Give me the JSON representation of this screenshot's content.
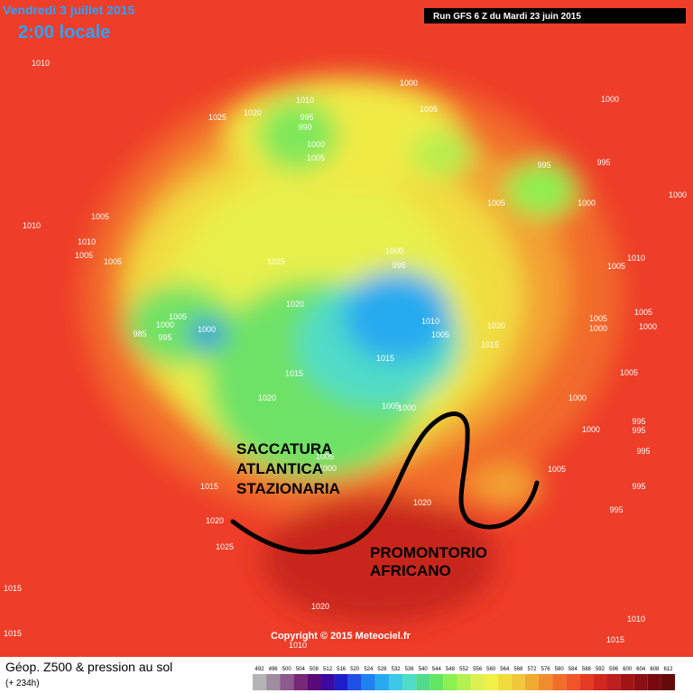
{
  "header": {
    "date": "Vendredi 3 juillet 2015",
    "time": "2:00 locale",
    "run": "Run GFS 6 Z du Mardi 23 juin 2015"
  },
  "annotations": {
    "trough": [
      "SACCATURA",
      "ATLANTICA",
      "STAZIONARIA"
    ],
    "ridge": [
      "PROMONTORIO",
      "AFRICANO"
    ]
  },
  "isobar_labels": [
    1010,
    1025,
    1020,
    1010,
    995,
    990,
    1000,
    1005,
    1000,
    1005,
    1000,
    995,
    995,
    1005,
    1000,
    1000,
    1005,
    1010,
    1010,
    1005,
    1005,
    1025,
    1000,
    995,
    1010,
    1005,
    1020,
    1005,
    1000,
    985,
    995,
    1000,
    1010,
    1005,
    1020,
    1005,
    1005,
    1000,
    1000,
    1015,
    1015,
    1015,
    1005,
    1020,
    1000,
    1005,
    1000,
    995,
    1000,
    995,
    1005,
    1000,
    1005,
    995,
    995,
    1015,
    1020,
    995,
    1020,
    1025,
    1015,
    1020,
    1015,
    1010,
    1010,
    1015
  ],
  "copyright": "Copyright © 2015 Meteociel.fr",
  "footer": {
    "title": "Géop. Z500 & pression au sol",
    "lead": "(+ 234h)"
  },
  "scale": {
    "ticks": [
      492,
      496,
      500,
      504,
      508,
      512,
      516,
      520,
      524,
      528,
      532,
      536,
      540,
      544,
      548,
      552,
      556,
      560,
      564,
      568,
      572,
      576,
      580,
      584,
      588,
      592,
      596,
      600,
      604,
      608,
      612
    ],
    "colors": [
      "#b4b4b4",
      "#a08ca0",
      "#8c5a8c",
      "#782878",
      "#5a0a78",
      "#3c0aa0",
      "#1e1ec8",
      "#1e50e6",
      "#1e82f0",
      "#28aaf0",
      "#3cc8e6",
      "#50dcc8",
      "#50dc8c",
      "#64e664",
      "#8cf050",
      "#b4f050",
      "#dcf050",
      "#f0f046",
      "#f0dc3c",
      "#f0c83c",
      "#f0aa32",
      "#f08c2d",
      "#f06e28",
      "#f05528",
      "#e63c23",
      "#d2281e",
      "#be1e1e",
      "#a01414",
      "#8c0f14",
      "#780a0f",
      "#640a0a"
    ]
  }
}
